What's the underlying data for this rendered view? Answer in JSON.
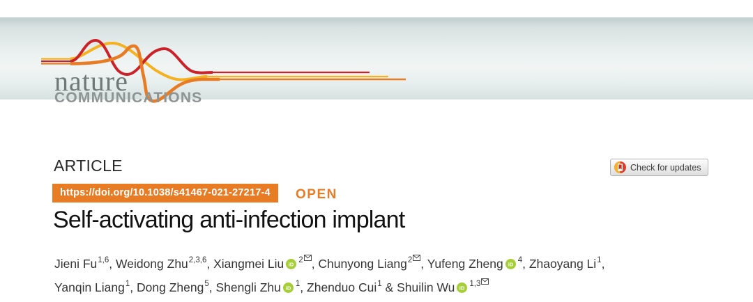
{
  "masthead": {
    "brand_top": "nature",
    "brand_bottom": "COMMUNICATIONS",
    "ribbon_icon": "nature-ribbons-icon",
    "banner_colors": {
      "top": "#bfcdcd",
      "middle": "#edf3f2",
      "bottom": "#d7e1e0"
    },
    "ribbon_colors": {
      "red": "#cb2128",
      "orange": "#e87c25",
      "yellow": "#f4b223"
    }
  },
  "article": {
    "kicker": "ARTICLE",
    "doi_label": "https://doi.org/10.1038/s41467-021-27217-4",
    "doi_badge_color": "#e87c25",
    "open_label": "OPEN",
    "title": "Self-activating anti-infection implant",
    "check_for_updates": {
      "label": "Check for updates",
      "icon": "crossmark-icon"
    }
  },
  "authors": {
    "orcid_icon": "orcid-icon",
    "orcid_color": "#a6ce39",
    "mail_icon": "envelope-icon",
    "line1": [
      {
        "name": "Jieni Fu",
        "sup": "1,6",
        "orcid": false,
        "mail": false,
        "sep": ", "
      },
      {
        "name": "Weidong Zhu",
        "sup": "2,3,6",
        "orcid": false,
        "mail": false,
        "sep": ", "
      },
      {
        "name": "Xiangmei Liu",
        "sup": "2",
        "orcid": true,
        "mail": true,
        "sep": ", "
      },
      {
        "name": "Chunyong Liang",
        "sup": "2",
        "orcid": false,
        "mail": true,
        "sep": ", "
      },
      {
        "name": "Yufeng Zheng",
        "sup": "4",
        "orcid": true,
        "mail": false,
        "sep": ", "
      },
      {
        "name": "Zhaoyang Li",
        "sup": "1",
        "orcid": false,
        "mail": false,
        "sep": ","
      }
    ],
    "line2": [
      {
        "name": "Yanqin Liang",
        "sup": "1",
        "orcid": false,
        "mail": false,
        "sep": ", "
      },
      {
        "name": "Dong Zheng",
        "sup": "5",
        "orcid": false,
        "mail": false,
        "sep": ", "
      },
      {
        "name": "Shengli Zhu",
        "sup": "1",
        "orcid": true,
        "mail": false,
        "sep": ", "
      },
      {
        "name": "Zhenduo Cui",
        "sup": "1",
        "orcid": false,
        "mail": false,
        "sep": " & "
      },
      {
        "name": "Shuilin Wu",
        "sup": "1,3",
        "orcid": true,
        "mail": true,
        "sep": ""
      }
    ]
  }
}
